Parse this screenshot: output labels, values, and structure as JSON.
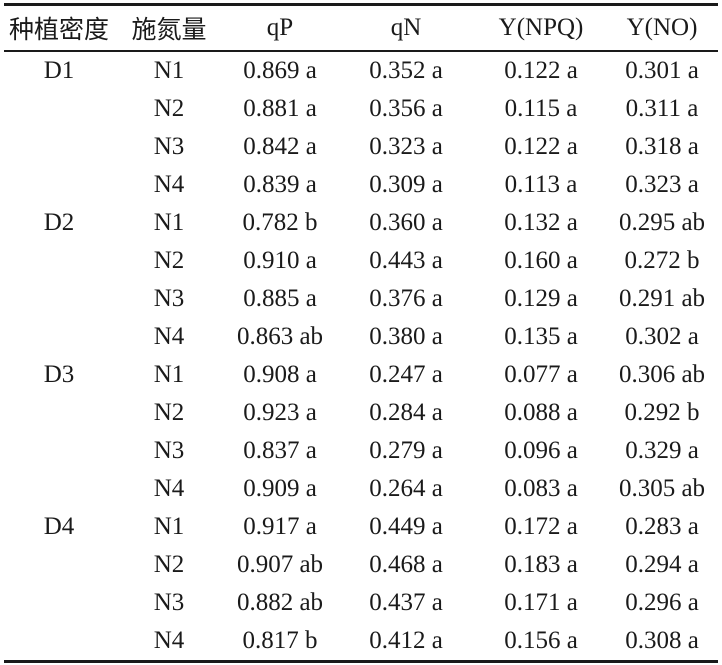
{
  "colors": {
    "background": "#ffffff",
    "text": "#1a1a1a",
    "rule": "#1a1a1a"
  },
  "table": {
    "columns": [
      "种植密度",
      "施氮量",
      "qP",
      "qN",
      "Y(NPQ)",
      "Y(NO)"
    ],
    "rows": [
      [
        "D1",
        "N1",
        "0.869 a",
        "0.352 a",
        "0.122 a",
        "0.301 a"
      ],
      [
        "",
        "N2",
        "0.881 a",
        "0.356 a",
        "0.115 a",
        "0.311 a"
      ],
      [
        "",
        "N3",
        "0.842 a",
        "0.323 a",
        "0.122 a",
        "0.318 a"
      ],
      [
        "",
        "N4",
        "0.839 a",
        "0.309 a",
        "0.113 a",
        "0.323 a"
      ],
      [
        "D2",
        "N1",
        "0.782 b",
        "0.360 a",
        "0.132 a",
        "0.295 ab"
      ],
      [
        "",
        "N2",
        "0.910 a",
        "0.443 a",
        "0.160 a",
        "0.272 b"
      ],
      [
        "",
        "N3",
        "0.885 a",
        "0.376 a",
        "0.129 a",
        "0.291 ab"
      ],
      [
        "",
        "N4",
        "0.863 ab",
        "0.380 a",
        "0.135 a",
        "0.302 a"
      ],
      [
        "D3",
        "N1",
        "0.908 a",
        "0.247 a",
        "0.077 a",
        "0.306 ab"
      ],
      [
        "",
        "N2",
        "0.923 a",
        "0.284 a",
        "0.088 a",
        "0.292 b"
      ],
      [
        "",
        "N3",
        "0.837 a",
        "0.279 a",
        "0.096 a",
        "0.329 a"
      ],
      [
        "",
        "N4",
        "0.909 a",
        "0.264 a",
        "0.083 a",
        "0.305 ab"
      ],
      [
        "D4",
        "N1",
        "0.917 a",
        "0.449 a",
        "0.172 a",
        "0.283 a"
      ],
      [
        "",
        "N2",
        "0.907 ab",
        "0.468 a",
        "0.183 a",
        "0.294 a"
      ],
      [
        "",
        "N3",
        "0.882 ab",
        "0.437 a",
        "0.171 a",
        "0.296 a"
      ],
      [
        "",
        "N4",
        "0.817 b",
        "0.412 a",
        "0.156 a",
        "0.308 a"
      ]
    ]
  }
}
